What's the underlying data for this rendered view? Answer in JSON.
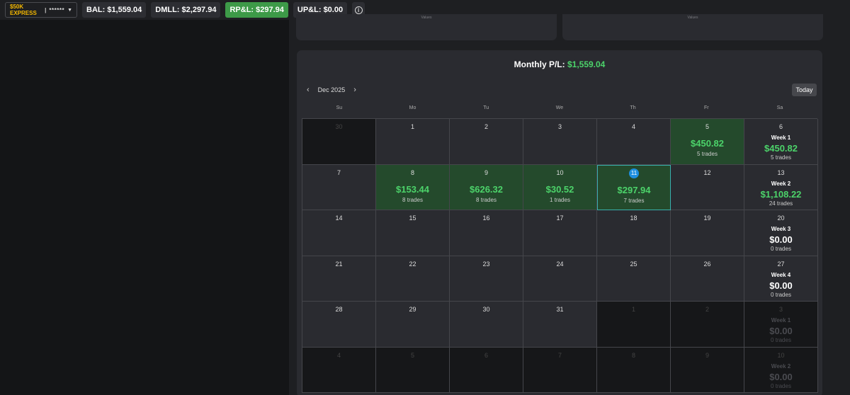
{
  "topbar": {
    "account_name": "$50K EXPRESS",
    "separator": "|",
    "account_mask": "******",
    "balance": "BAL: $1,559.04",
    "dmll": "DMLL: $2,297.94",
    "rpl": "RP&L: $297.94",
    "upl": "UP&L: $0.00",
    "info_glyph": "i"
  },
  "upper_cards": {
    "left_label": "Values",
    "right_label": "Values"
  },
  "calendar": {
    "monthly_label": "Monthly P/L:",
    "monthly_value": "$1,559.04",
    "month": "Dec 2025",
    "prev": "‹",
    "next": "›",
    "today_button": "Today",
    "days_of_week": [
      "Su",
      "Mo",
      "Tu",
      "We",
      "Th",
      "Fr",
      "Sa"
    ],
    "weeks": [
      [
        {
          "day": "30",
          "out": true
        },
        {
          "day": "1"
        },
        {
          "day": "2"
        },
        {
          "day": "3"
        },
        {
          "day": "4"
        },
        {
          "day": "5",
          "pl": "$450.82",
          "trades": "5 trades"
        },
        {
          "day": "6",
          "week": "Week 1",
          "week_pl": "$450.82",
          "week_trades": "5 trades",
          "positive": true
        }
      ],
      [
        {
          "day": "7"
        },
        {
          "day": "8",
          "pl": "$153.44",
          "trades": "8 trades"
        },
        {
          "day": "9",
          "pl": "$626.32",
          "trades": "8 trades"
        },
        {
          "day": "10",
          "pl": "$30.52",
          "trades": "1 trades"
        },
        {
          "day": "11",
          "pl": "$297.94",
          "trades": "7 trades",
          "today": true
        },
        {
          "day": "12"
        },
        {
          "day": "13",
          "week": "Week 2",
          "week_pl": "$1,108.22",
          "week_trades": "24 trades",
          "positive": true
        }
      ],
      [
        {
          "day": "14"
        },
        {
          "day": "15"
        },
        {
          "day": "16"
        },
        {
          "day": "17"
        },
        {
          "day": "18"
        },
        {
          "day": "19"
        },
        {
          "day": "20",
          "week": "Week 3",
          "week_pl": "$0.00",
          "week_trades": "0 trades"
        }
      ],
      [
        {
          "day": "21"
        },
        {
          "day": "22"
        },
        {
          "day": "23"
        },
        {
          "day": "24"
        },
        {
          "day": "25"
        },
        {
          "day": "26"
        },
        {
          "day": "27",
          "week": "Week 4",
          "week_pl": "$0.00",
          "week_trades": "0 trades"
        }
      ],
      [
        {
          "day": "28"
        },
        {
          "day": "29"
        },
        {
          "day": "30"
        },
        {
          "day": "31"
        },
        {
          "day": "1",
          "out": true
        },
        {
          "day": "2",
          "out": true
        },
        {
          "day": "3",
          "out": true,
          "week": "Week 1",
          "week_pl": "$0.00",
          "week_trades": "0 trades"
        }
      ],
      [
        {
          "day": "4",
          "out": true
        },
        {
          "day": "5",
          "out": true
        },
        {
          "day": "6",
          "out": true
        },
        {
          "day": "7",
          "out": true
        },
        {
          "day": "8",
          "out": true
        },
        {
          "day": "9",
          "out": true
        },
        {
          "day": "10",
          "out": true,
          "week": "Week 2",
          "week_pl": "$0.00",
          "week_trades": "0 trades"
        }
      ]
    ]
  }
}
